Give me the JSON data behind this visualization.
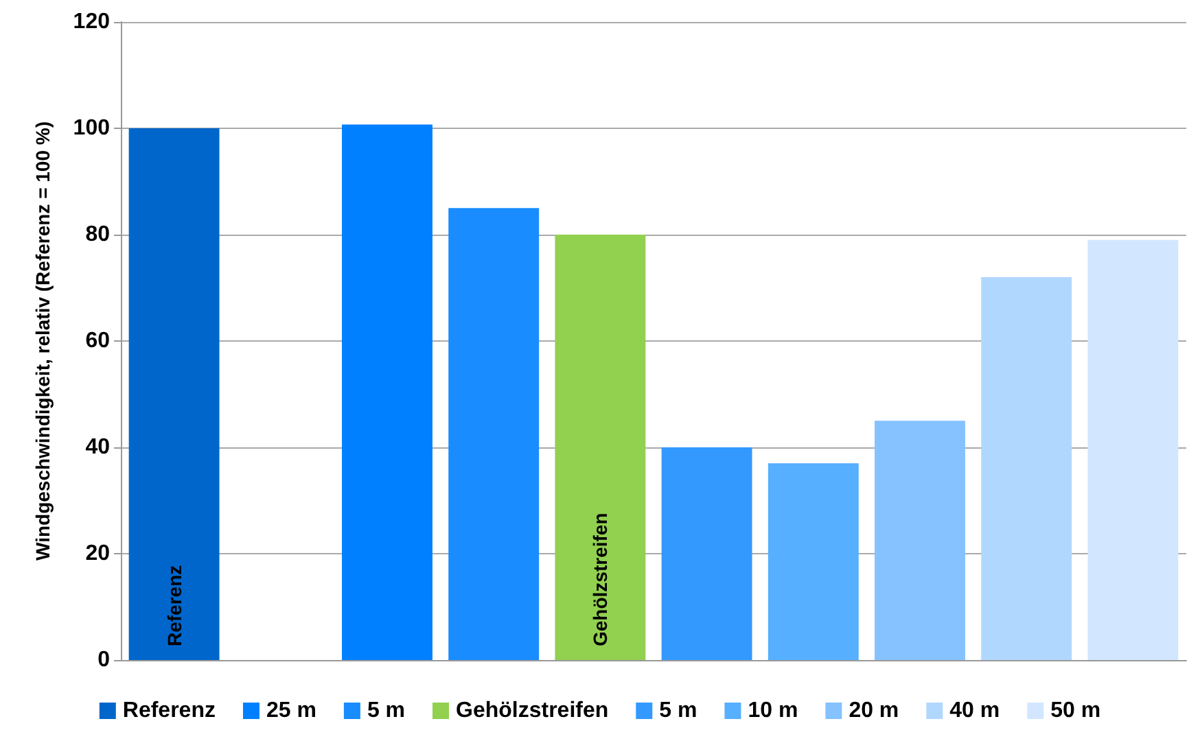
{
  "chart_data": {
    "type": "bar",
    "ylabel": "Windgeschwindigkeit, relativ (Referenz = 100 %)",
    "categories": [
      null,
      null,
      null,
      null,
      null,
      null,
      null,
      null,
      null,
      null
    ],
    "stacked": true,
    "series": [
      {
        "name": "Referenz",
        "color": "#0066cc",
        "values": [
          100,
          null,
          null,
          null,
          null,
          null,
          null,
          null,
          null,
          null
        ],
        "value_labels": [
          "Referenz",
          null,
          null,
          null,
          null,
          null,
          null,
          null,
          null,
          null
        ]
      },
      {
        "name": "25 m",
        "color": "#0080ff",
        "values": [
          null,
          null,
          100.7,
          null,
          null,
          null,
          null,
          null,
          null,
          null
        ]
      },
      {
        "name": "5 m",
        "color": "#198cff",
        "values": [
          null,
          null,
          null,
          85,
          null,
          null,
          null,
          null,
          null,
          null
        ]
      },
      {
        "name": "Gehölzstreifen",
        "color": "#92d050",
        "values": [
          null,
          null,
          null,
          null,
          80,
          null,
          null,
          null,
          null,
          null
        ],
        "value_labels": [
          null,
          null,
          null,
          null,
          "Gehölzstreifen",
          null,
          null,
          null,
          null,
          null
        ]
      },
      {
        "name": "5 m",
        "color": "#3399ff",
        "values": [
          null,
          null,
          null,
          null,
          null,
          40,
          null,
          null,
          null,
          null
        ]
      },
      {
        "name": "10 m",
        "color": "#57afff",
        "values": [
          null,
          null,
          null,
          null,
          null,
          null,
          37,
          null,
          null,
          null
        ]
      },
      {
        "name": "20 m",
        "color": "#85c2ff",
        "values": [
          null,
          null,
          null,
          null,
          null,
          null,
          null,
          45,
          null,
          null
        ]
      },
      {
        "name": "40 m",
        "color": "#b0d8ff",
        "values": [
          null,
          null,
          null,
          null,
          null,
          null,
          null,
          null,
          72,
          null
        ]
      },
      {
        "name": "50 m",
        "color": "#d2e7ff",
        "values": [
          null,
          null,
          null,
          null,
          null,
          null,
          null,
          null,
          null,
          79
        ]
      }
    ],
    "ylim": [
      0,
      120
    ],
    "yticks": [
      0,
      20,
      40,
      60,
      80,
      100,
      120
    ],
    "grid": "y",
    "legend": "bottom"
  }
}
